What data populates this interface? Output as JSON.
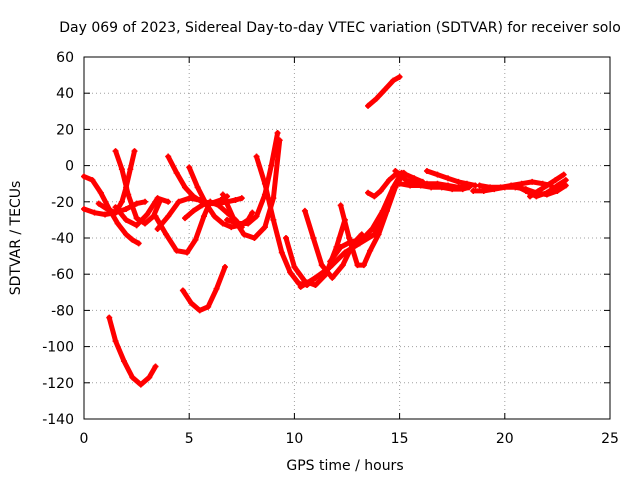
{
  "chart_data": {
    "type": "scatter",
    "title": "Day 069 of 2023, Sidereal Day-to-day VTEC variation (SDTVAR) for receiver solo",
    "xlabel": "GPS time / hours",
    "ylabel": "SDTVAR / TECUs",
    "xlim": [
      0,
      25
    ],
    "ylim": [
      -140,
      60
    ],
    "xticks": [
      0,
      5,
      10,
      15,
      20,
      25
    ],
    "yticks": [
      -140,
      -120,
      -100,
      -80,
      -60,
      -40,
      -20,
      0,
      20,
      40,
      60
    ],
    "grid": true,
    "marker": "+",
    "color": "#ff0000",
    "series": [
      {
        "x": [
          0.0,
          0.4,
          0.8,
          1.2,
          1.6,
          2.0,
          2.3,
          2.6
        ],
        "y": [
          -6,
          -8,
          -15,
          -24,
          -32,
          -38,
          -41,
          -43
        ]
      },
      {
        "x": [
          0.0,
          0.5,
          1.0,
          1.5,
          2.0,
          2.5,
          2.9
        ],
        "y": [
          -24,
          -26,
          -27,
          -26,
          -24,
          -21,
          -20
        ]
      },
      {
        "x": [
          0.7,
          1.1,
          1.5,
          1.8,
          2.0,
          2.2,
          2.4
        ],
        "y": [
          -21,
          -24,
          -26,
          -20,
          -12,
          -2,
          8
        ]
      },
      {
        "x": [
          1.5,
          1.8,
          2.1,
          2.5,
          2.9,
          3.3,
          3.6
        ],
        "y": [
          8,
          -2,
          -16,
          -29,
          -32,
          -28,
          -20
        ]
      },
      {
        "x": [
          1.2,
          1.5,
          1.9,
          2.3,
          2.7,
          3.1,
          3.4
        ],
        "y": [
          -84,
          -97,
          -108,
          -117,
          -121,
          -117,
          -111
        ]
      },
      {
        "x": [
          1.5,
          2.0,
          2.5,
          3.0,
          3.5,
          4.0
        ],
        "y": [
          -23,
          -30,
          -33,
          -27,
          -18,
          -20
        ]
      },
      {
        "x": [
          3.5,
          4.0,
          4.5,
          5.0,
          5.5,
          6.0,
          6.5,
          6.8
        ],
        "y": [
          -35,
          -28,
          -20,
          -18,
          -19,
          -21,
          -19,
          -17
        ]
      },
      {
        "x": [
          3.4,
          3.9,
          4.4,
          4.9,
          5.3,
          5.7,
          6.0
        ],
        "y": [
          -28,
          -38,
          -47,
          -48,
          -41,
          -28,
          -20
        ]
      },
      {
        "x": [
          4.0,
          4.4,
          4.8,
          5.2,
          5.6,
          6.0,
          6.4,
          6.8,
          7.2,
          7.5
        ],
        "y": [
          5,
          -4,
          -12,
          -17,
          -20,
          -21,
          -21,
          -20,
          -19,
          -18
        ]
      },
      {
        "x": [
          4.7,
          5.1,
          5.5,
          5.9,
          6.3,
          6.7
        ],
        "y": [
          -69,
          -76,
          -80,
          -78,
          -68,
          -56
        ]
      },
      {
        "x": [
          5.0,
          5.4,
          5.8,
          6.2,
          6.6,
          7.0,
          7.4,
          7.8,
          8.0
        ],
        "y": [
          -1,
          -12,
          -21,
          -28,
          -32,
          -34,
          -33,
          -30,
          -26
        ]
      },
      {
        "x": [
          4.8,
          5.2,
          5.6,
          6.0,
          6.4,
          6.8,
          7.2,
          7.5
        ],
        "y": [
          -29,
          -25,
          -22,
          -20,
          -22,
          -26,
          -30,
          -34
        ]
      },
      {
        "x": [
          6.6,
          7.1,
          7.6,
          8.1,
          8.6,
          9.0,
          9.3
        ],
        "y": [
          -16,
          -29,
          -38,
          -40,
          -34,
          -18,
          14
        ]
      },
      {
        "x": [
          6.8,
          7.3,
          7.8,
          8.2,
          8.6,
          8.9,
          9.2
        ],
        "y": [
          -30,
          -32,
          -32,
          -28,
          -16,
          0,
          18
        ]
      },
      {
        "x": [
          8.2,
          8.6,
          9.0,
          9.4,
          9.8,
          10.2,
          10.6,
          11.0
        ],
        "y": [
          5,
          -10,
          -30,
          -48,
          -59,
          -65,
          -66,
          -62
        ]
      },
      {
        "x": [
          9.6,
          10.0,
          10.5,
          11.0,
          11.5,
          12.0,
          12.4
        ],
        "y": [
          -40,
          -56,
          -64,
          -66,
          -60,
          -45,
          -30
        ]
      },
      {
        "x": [
          10.5,
          10.9,
          11.3,
          11.8,
          12.3,
          12.8,
          13.2
        ],
        "y": [
          -25,
          -40,
          -55,
          -62,
          -55,
          -43,
          -38
        ]
      },
      {
        "x": [
          10.3,
          11.0,
          11.7,
          12.4,
          13.1,
          13.8,
          14.2
        ],
        "y": [
          -67,
          -62,
          -56,
          -48,
          -43,
          -38,
          -28
        ]
      },
      {
        "x": [
          11.7,
          12.2,
          12.7,
          13.2,
          13.7,
          14.2,
          14.7,
          15.1
        ],
        "y": [
          -53,
          -45,
          -42,
          -41,
          -35,
          -25,
          -12,
          -4
        ]
      },
      {
        "x": [
          12.2,
          12.6,
          13.0,
          13.3,
          13.6,
          14.0,
          14.4,
          14.8,
          15.2
        ],
        "y": [
          -22,
          -40,
          -55,
          -55,
          -47,
          -38,
          -25,
          -12,
          -4
        ]
      },
      {
        "x": [
          13.5,
          13.8,
          14.1,
          14.5,
          14.9,
          15.3,
          15.7,
          16.1
        ],
        "y": [
          -15,
          -17,
          -14,
          -8,
          -4,
          -5,
          -7,
          -9
        ]
      },
      {
        "x": [
          13.5,
          13.9,
          14.3,
          14.7,
          15.0
        ],
        "y": [
          33,
          37,
          42,
          47,
          49
        ]
      },
      {
        "x": [
          14.8,
          15.3,
          15.8,
          16.3,
          16.8,
          17.3,
          17.8,
          18.2
        ],
        "y": [
          -3,
          -8,
          -10,
          -10,
          -10,
          -11,
          -12,
          -12
        ]
      },
      {
        "x": [
          15.0,
          15.5,
          16.0,
          16.5,
          17.0,
          17.5,
          18.0,
          18.3
        ],
        "y": [
          -10,
          -11,
          -11,
          -12,
          -12,
          -13,
          -13,
          -12
        ]
      },
      {
        "x": [
          16.3,
          16.8,
          17.3,
          17.8,
          18.2,
          18.6
        ],
        "y": [
          -3,
          -5,
          -7,
          -9,
          -10,
          -11
        ]
      },
      {
        "x": [
          18.8,
          19.3,
          19.8,
          20.3,
          20.8,
          21.3,
          21.8,
          22.2
        ],
        "y": [
          -11,
          -12,
          -12,
          -11,
          -10,
          -9,
          -10,
          -11
        ]
      },
      {
        "x": [
          18.5,
          19.0,
          19.5,
          20.0,
          20.5,
          21.0,
          21.5,
          22.0,
          22.5,
          22.9
        ],
        "y": [
          -14,
          -14,
          -13,
          -12,
          -12,
          -13,
          -15,
          -16,
          -14,
          -11
        ]
      },
      {
        "x": [
          20.5,
          21.0,
          21.5,
          22.0,
          22.5,
          22.9
        ],
        "y": [
          -11,
          -14,
          -17,
          -15,
          -11,
          -8
        ]
      },
      {
        "x": [
          21.2,
          21.6,
          22.0,
          22.4,
          22.8
        ],
        "y": [
          -17,
          -14,
          -11,
          -8,
          -5
        ]
      }
    ]
  }
}
